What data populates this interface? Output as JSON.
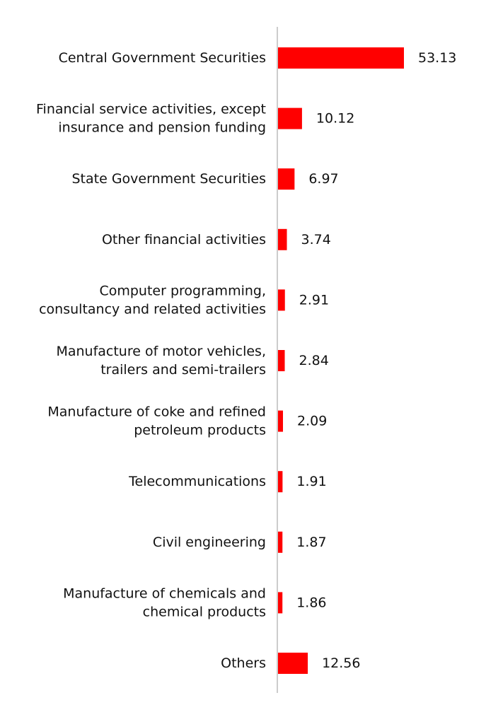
{
  "chart_data": {
    "type": "bar",
    "orientation": "horizontal",
    "title": "",
    "xlabel": "",
    "ylabel": "",
    "categories": [
      [
        "Central Government Securities"
      ],
      [
        "Financial service activities, except",
        "insurance and pension funding"
      ],
      [
        "State Government Securities"
      ],
      [
        "Other financial activities"
      ],
      [
        "Computer programming,",
        "consultancy and related activities"
      ],
      [
        "Manufacture of motor vehicles,",
        "trailers and semi-trailers"
      ],
      [
        "Manufacture of coke and refined",
        "petroleum products"
      ],
      [
        "Telecommunications"
      ],
      [
        "Civil engineering"
      ],
      [
        "Manufacture of chemicals and",
        "chemical products"
      ],
      [
        "Others"
      ]
    ],
    "values": [
      53.13,
      10.12,
      6.97,
      3.74,
      2.91,
      2.84,
      2.09,
      1.91,
      1.87,
      1.86,
      12.56
    ],
    "value_labels": [
      "53.13",
      "10.12",
      "6.97",
      "3.74",
      "2.91",
      "2.84",
      "2.09",
      "1.91",
      "1.87",
      "1.86",
      "12.56"
    ],
    "bar_color": "#ff0000",
    "axis_color": "#cccccc",
    "grid": false,
    "legend": "none"
  }
}
